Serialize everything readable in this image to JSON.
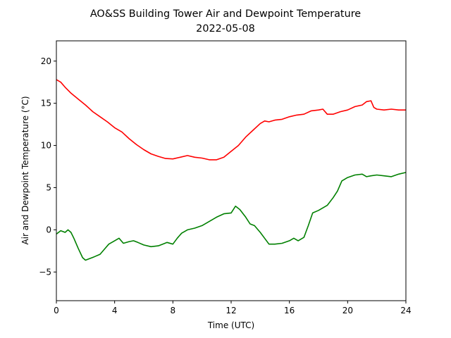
{
  "chart_data": {
    "type": "line",
    "title": "AO&SS Building Tower Air and Dewpoint Temperature",
    "subtitle": "2022-05-08",
    "xlabel": "Time (UTC)",
    "ylabel": "Air and Dewpoint Temperature (°C)",
    "xlim": [
      0,
      24
    ],
    "ylim": [
      -8.4,
      22.4
    ],
    "xticks": [
      0,
      4,
      8,
      12,
      16,
      20,
      24
    ],
    "yticks": [
      -5,
      0,
      5,
      10,
      15,
      20
    ],
    "grid": false,
    "legend": "none",
    "series": [
      {
        "color": "#ff0000",
        "x": [
          0,
          0.3,
          0.6,
          1,
          1.5,
          2,
          2.5,
          3,
          3.5,
          4,
          4.5,
          5,
          5.5,
          6,
          6.5,
          7,
          7.5,
          8,
          8.5,
          9,
          9.5,
          10,
          10.5,
          11,
          11.5,
          12,
          12.5,
          13,
          13.5,
          14,
          14.3,
          14.6,
          15,
          15.5,
          16,
          16.5,
          17,
          17.5,
          18,
          18.3,
          18.6,
          19,
          19.5,
          20,
          20.5,
          21,
          21.3,
          21.6,
          21.8,
          22,
          22.5,
          23,
          23.5,
          24
        ],
        "y": [
          17.8,
          17.5,
          16.9,
          16.2,
          15.5,
          14.8,
          14.0,
          13.4,
          12.8,
          12.1,
          11.6,
          10.8,
          10.1,
          9.5,
          9.0,
          8.7,
          8.45,
          8.4,
          8.6,
          8.8,
          8.6,
          8.5,
          8.3,
          8.3,
          8.6,
          9.3,
          10.0,
          11.0,
          11.8,
          12.6,
          12.9,
          12.8,
          13.0,
          13.1,
          13.4,
          13.6,
          13.7,
          14.1,
          14.2,
          14.3,
          13.7,
          13.7,
          14.0,
          14.2,
          14.6,
          14.8,
          15.2,
          15.3,
          14.5,
          14.3,
          14.2,
          14.3,
          14.2,
          14.2
        ]
      },
      {
        "color": "#008000",
        "x": [
          0,
          0.3,
          0.6,
          0.8,
          1,
          1.2,
          1.5,
          1.8,
          2,
          2.3,
          2.6,
          3,
          3.3,
          3.6,
          4,
          4.3,
          4.6,
          5,
          5.3,
          5.6,
          6,
          6.5,
          7,
          7.3,
          7.6,
          8,
          8.3,
          8.6,
          9,
          9.5,
          10,
          10.5,
          11,
          11.5,
          12,
          12.3,
          12.6,
          13,
          13.3,
          13.6,
          14,
          14.3,
          14.6,
          15,
          15.5,
          16,
          16.3,
          16.6,
          17,
          17.3,
          17.6,
          18,
          18.3,
          18.6,
          19,
          19.3,
          19.6,
          20,
          20.5,
          21,
          21.3,
          21.6,
          22,
          22.5,
          23,
          23.5,
          24
        ],
        "y": [
          -0.5,
          -0.1,
          -0.3,
          0.0,
          -0.3,
          -1.0,
          -2.2,
          -3.3,
          -3.6,
          -3.4,
          -3.2,
          -2.9,
          -2.3,
          -1.7,
          -1.3,
          -1.0,
          -1.6,
          -1.4,
          -1.3,
          -1.5,
          -1.8,
          -2.0,
          -1.9,
          -1.7,
          -1.5,
          -1.7,
          -1.0,
          -0.4,
          0.0,
          0.2,
          0.5,
          1.0,
          1.5,
          1.9,
          2.0,
          2.8,
          2.4,
          1.5,
          0.7,
          0.5,
          -0.3,
          -1.0,
          -1.7,
          -1.7,
          -1.6,
          -1.3,
          -1.0,
          -1.3,
          -0.9,
          0.5,
          2.0,
          2.3,
          2.6,
          2.9,
          3.8,
          4.6,
          5.8,
          6.2,
          6.5,
          6.6,
          6.3,
          6.4,
          6.5,
          6.4,
          6.3,
          6.6,
          6.8
        ]
      }
    ]
  }
}
